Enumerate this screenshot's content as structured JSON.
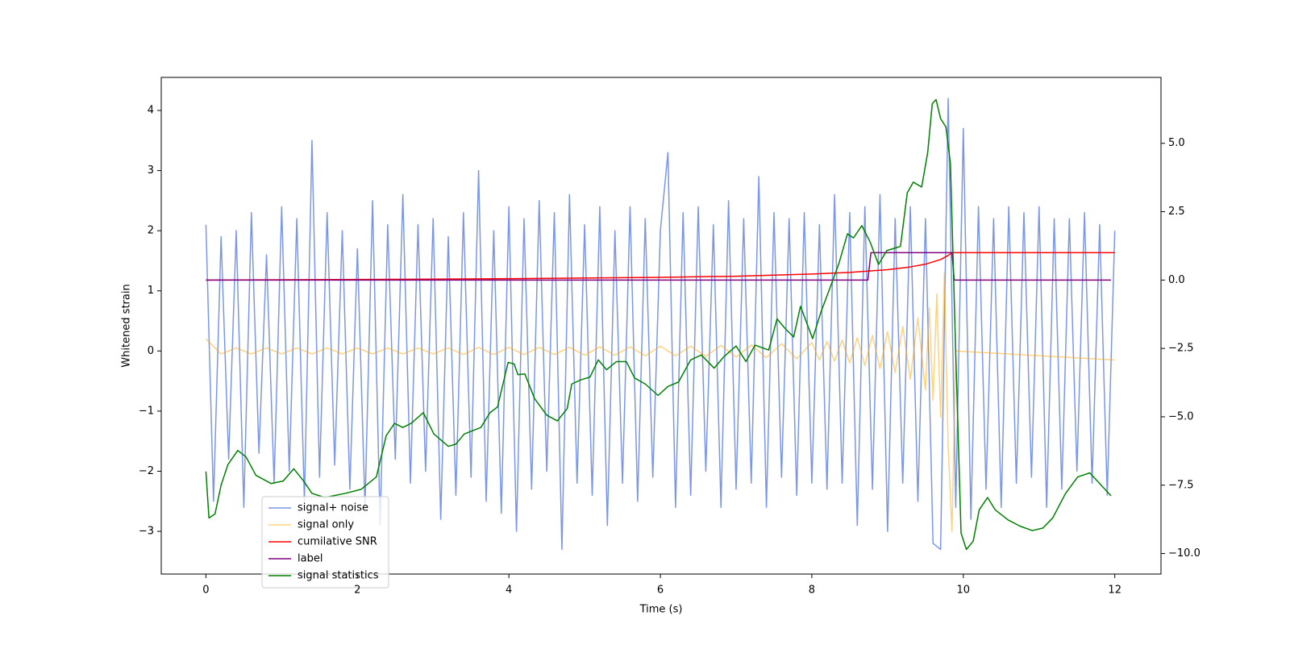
{
  "chart_data": {
    "type": "line",
    "xlabel": "Time (s)",
    "ylabel": "Whitened strain",
    "xlim": [
      -0.59,
      12.61
    ],
    "ylim": [
      -3.71,
      4.55
    ],
    "y2lim": [
      -10.75,
      7.41
    ],
    "xticks": [
      0,
      2,
      4,
      6,
      8,
      10,
      12
    ],
    "yticks": [
      {
        "value": -3,
        "label": "−3"
      },
      {
        "value": -2,
        "label": "−2"
      },
      {
        "value": -1,
        "label": "−1"
      },
      0,
      1,
      2,
      3,
      4
    ],
    "y2ticks": [
      {
        "value": -10,
        "label": "−10.0"
      },
      {
        "value": -7.5,
        "label": "−7.5"
      },
      {
        "value": -5,
        "label": "−5.0"
      },
      {
        "value": -2.5,
        "label": "−2.5"
      },
      {
        "value": 0,
        "label": "0.0"
      },
      {
        "value": 2.5,
        "label": "2.5"
      },
      {
        "value": 5,
        "label": "5.0"
      }
    ],
    "grid": false,
    "series": [
      {
        "name": "signal+ noise",
        "color": "royalblue",
        "alpha": 0.7,
        "x": [
          0,
          0.1,
          0.2,
          0.3,
          0.4,
          0.5,
          0.6,
          0.7,
          0.8,
          0.9,
          1,
          1.1,
          1.2,
          1.3,
          1.4,
          1.5,
          1.6,
          1.7,
          1.8,
          1.9,
          2,
          2.1,
          2.2,
          2.3,
          2.4,
          2.5,
          2.6,
          2.7,
          2.8,
          2.9,
          3,
          3.1,
          3.2,
          3.3,
          3.4,
          3.5,
          3.6,
          3.7,
          3.8,
          3.9,
          4,
          4.1,
          4.2,
          4.3,
          4.4,
          4.5,
          4.6,
          4.7,
          4.8,
          4.9,
          5,
          5.1,
          5.2,
          5.3,
          5.4,
          5.5,
          5.6,
          5.7,
          5.8,
          5.9,
          6,
          6.1,
          6.2,
          6.3,
          6.4,
          6.5,
          6.6,
          6.7,
          6.8,
          6.9,
          7,
          7.1,
          7.2,
          7.3,
          7.4,
          7.5,
          7.6,
          7.7,
          7.8,
          7.9,
          8,
          8.1,
          8.2,
          8.3,
          8.4,
          8.5,
          8.6,
          8.7,
          8.8,
          8.9,
          9,
          9.1,
          9.2,
          9.3,
          9.4,
          9.5,
          9.6,
          9.7,
          9.8,
          9.9,
          10,
          10.1,
          10.2,
          10.3,
          10.4,
          10.5,
          10.6,
          10.7,
          10.8,
          10.9,
          11,
          11.1,
          11.2,
          11.3,
          11.4,
          11.5,
          11.6,
          11.7,
          11.8,
          11.9,
          12
        ],
        "values": [
          2.1,
          -2.5,
          1.9,
          -1.8,
          2.0,
          -2.6,
          2.3,
          -1.7,
          1.6,
          -2.2,
          2.4,
          -2.0,
          2.2,
          -2.5,
          3.5,
          -2.1,
          2.3,
          -1.9,
          2.0,
          -2.3,
          1.7,
          -2.6,
          2.5,
          -2.9,
          2.1,
          -1.8,
          2.6,
          -2.2,
          2.1,
          -2.0,
          2.2,
          -2.8,
          1.9,
          -2.4,
          2.3,
          -2.1,
          3.0,
          -2.5,
          2.0,
          -2.7,
          2.4,
          -3.0,
          2.2,
          -2.3,
          2.5,
          -2.0,
          2.3,
          -3.3,
          2.6,
          -2.2,
          2.1,
          -2.4,
          2.4,
          -2.9,
          2.0,
          -2.2,
          2.4,
          -2.5,
          2.2,
          -2.1,
          2.0,
          3.3,
          -2.6,
          2.3,
          -2.4,
          2.4,
          -2.0,
          2.1,
          -2.6,
          2.5,
          -2.3,
          2.2,
          -2.2,
          2.9,
          -2.6,
          2.3,
          -2.1,
          2.2,
          -2.4,
          2.3,
          -2.2,
          2.1,
          -2.3,
          2.6,
          -2.2,
          2.3,
          -2.9,
          2.4,
          -2.3,
          2.6,
          -3.0,
          2.2,
          -2.2,
          2.4,
          -2.5,
          2.2,
          -3.2,
          -3.3,
          4.2,
          -2.6,
          3.7,
          -2.8,
          2.4,
          -2.3,
          2.2,
          -2.6,
          2.4,
          -2.2,
          2.3,
          -2.1,
          2.4,
          -2.6,
          2.2,
          -2.3,
          2.2,
          -2.0,
          2.3,
          -2.2,
          2.1,
          -2.4,
          2.0
        ]
      },
      {
        "name": "signal only",
        "color": "orange",
        "alpha": 0.5,
        "x": [
          0,
          0.2,
          0.4,
          0.6,
          0.8,
          1,
          1.2,
          1.4,
          1.6,
          1.8,
          2,
          2.2,
          2.4,
          2.6,
          2.8,
          3,
          3.2,
          3.4,
          3.6,
          3.8,
          4,
          4.2,
          4.4,
          4.6,
          4.8,
          5,
          5.2,
          5.4,
          5.6,
          5.8,
          6,
          6.2,
          6.4,
          6.6,
          6.8,
          7,
          7.2,
          7.4,
          7.6,
          7.8,
          8,
          8.1,
          8.2,
          8.3,
          8.4,
          8.5,
          8.6,
          8.7,
          8.8,
          8.9,
          9,
          9.1,
          9.2,
          9.3,
          9.4,
          9.5,
          9.55,
          9.6,
          9.65,
          9.7,
          9.75,
          9.8,
          9.85,
          9.9,
          12
        ],
        "values": [
          0.2,
          -0.05,
          0.05,
          -0.05,
          0.05,
          -0.05,
          0.05,
          -0.05,
          0.05,
          -0.05,
          0.05,
          -0.05,
          0.05,
          -0.05,
          0.05,
          -0.05,
          0.05,
          -0.06,
          0.06,
          -0.06,
          0.06,
          -0.06,
          0.06,
          -0.06,
          0.06,
          -0.07,
          0.07,
          -0.07,
          0.07,
          -0.08,
          0.08,
          -0.08,
          0.08,
          -0.09,
          0.09,
          -0.1,
          0.1,
          -0.11,
          0.12,
          -0.13,
          0.14,
          -0.15,
          0.16,
          -0.17,
          0.18,
          -0.2,
          0.22,
          -0.24,
          0.26,
          -0.29,
          0.32,
          -0.36,
          0.41,
          -0.47,
          0.55,
          -0.65,
          0.72,
          -0.82,
          0.95,
          -1.1,
          1.3,
          -1.6,
          -3.0,
          0,
          -0.15
        ]
      },
      {
        "name": "cumilative SNR",
        "color": "red",
        "axis": "y2",
        "x": [
          0,
          2,
          4,
          6,
          7,
          8,
          8.5,
          9,
          9.3,
          9.5,
          9.7,
          9.8,
          9.85,
          9.86,
          12
        ],
        "values": [
          0,
          0.02,
          0.05,
          0.1,
          0.14,
          0.22,
          0.28,
          0.38,
          0.48,
          0.58,
          0.75,
          0.9,
          1.0,
          1.0,
          1.0
        ]
      },
      {
        "name": "label",
        "color": "purple",
        "axis": "y2",
        "x": [
          0,
          8.74,
          8.78,
          9.85,
          9.88,
          11.95
        ],
        "values": [
          0,
          0,
          1,
          1,
          0,
          0
        ]
      },
      {
        "name": "signal statistics",
        "color": "green",
        "axis": "y2",
        "x": [
          0,
          0.04,
          0.12,
          0.2,
          0.29,
          0.42,
          0.53,
          0.66,
          0.86,
          1.02,
          1.16,
          1.29,
          1.4,
          1.57,
          1.84,
          2.05,
          2.25,
          2.38,
          2.49,
          2.6,
          2.71,
          2.87,
          3.01,
          3.2,
          3.3,
          3.41,
          3.63,
          3.75,
          3.85,
          3.99,
          4.07,
          4.12,
          4.21,
          4.34,
          4.5,
          4.64,
          4.77,
          4.83,
          4.96,
          5.07,
          5.18,
          5.29,
          5.42,
          5.55,
          5.66,
          5.8,
          5.97,
          6.1,
          6.24,
          6.4,
          6.54,
          6.71,
          6.84,
          7.0,
          7.13,
          7.25,
          7.43,
          7.54,
          7.65,
          7.76,
          7.85,
          8.01,
          8.12,
          8.27,
          8.36,
          8.47,
          8.55,
          8.66,
          8.77,
          8.88,
          8.99,
          9.17,
          9.26,
          9.34,
          9.45,
          9.53,
          9.59,
          9.64,
          9.7,
          9.77,
          9.83,
          9.9,
          9.97,
          10.04,
          10.13,
          10.21,
          10.32,
          10.42,
          10.59,
          10.75,
          10.91,
          11.05,
          11.18,
          11.35,
          11.51,
          11.67,
          11.82,
          11.95
        ],
        "values": [
          -7.0,
          -8.7,
          -8.55,
          -7.5,
          -6.75,
          -6.23,
          -6.47,
          -7.14,
          -7.44,
          -7.35,
          -6.9,
          -7.35,
          -7.8,
          -7.95,
          -7.8,
          -7.65,
          -7.2,
          -5.69,
          -5.24,
          -5.39,
          -5.24,
          -4.85,
          -5.63,
          -6.08,
          -6.0,
          -5.63,
          -5.39,
          -4.85,
          -4.64,
          -3.01,
          -3.07,
          -3.46,
          -3.43,
          -4.34,
          -4.94,
          -5.15,
          -4.7,
          -3.8,
          -3.64,
          -3.55,
          -2.92,
          -3.28,
          -2.98,
          -2.98,
          -3.58,
          -3.8,
          -4.22,
          -3.89,
          -3.73,
          -2.92,
          -2.74,
          -3.22,
          -2.8,
          -2.41,
          -2.98,
          -2.38,
          -2.56,
          -1.42,
          -1.78,
          -2.08,
          -0.96,
          -2.14,
          -1.17,
          -0.06,
          0.63,
          1.69,
          1.54,
          1.99,
          1.39,
          0.57,
          1.08,
          1.23,
          3.19,
          3.58,
          3.4,
          4.67,
          6.45,
          6.6,
          5.9,
          5.6,
          4.25,
          -2.68,
          -9.25,
          -9.85,
          -9.55,
          -8.4,
          -7.95,
          -8.4,
          -8.77,
          -9.0,
          -9.16,
          -9.07,
          -8.7,
          -7.8,
          -7.2,
          -7.05,
          -7.5,
          -7.89
        ]
      }
    ]
  }
}
